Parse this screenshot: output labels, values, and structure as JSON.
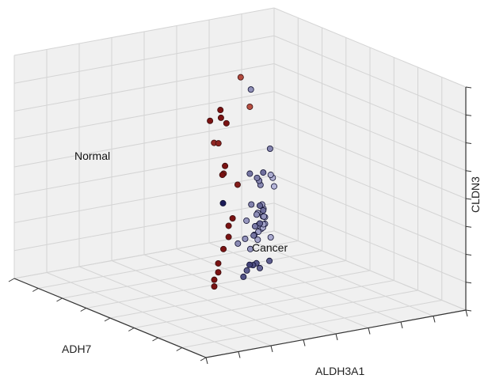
{
  "chart_data": {
    "type": "scatter",
    "projection": "3d",
    "title": "",
    "xlabel": "ADH7",
    "ylabel": "ALDH3A1",
    "zlabel": "CLDN3",
    "grid": true,
    "pane_color": "#f0f0f0",
    "grid_color": "#d4d4d4",
    "annotations": [
      {
        "text": "Normal",
        "class": "normal"
      },
      {
        "text": "Cancer",
        "class": "cancer"
      }
    ],
    "colors": {
      "normal_edge": "#3a0e0e",
      "normal_light": "#e07a64",
      "normal_dark": "#7a1212",
      "cancer_light": "#b6b6d8",
      "cancer_dark": "#1c1c58"
    },
    "series": [
      {
        "class": "normal",
        "points": [
          {
            "x": 0.9,
            "y": 0.05,
            "z": 0.78
          },
          {
            "x": 0.78,
            "y": 0.22,
            "z": 0.95
          },
          {
            "x": 0.8,
            "y": 0.25,
            "z": 0.93
          },
          {
            "x": 0.76,
            "y": 0.25,
            "z": 0.97
          },
          {
            "x": 0.7,
            "y": 0.3,
            "z": 0.88
          },
          {
            "x": 0.72,
            "y": 0.28,
            "z": 0.7
          },
          {
            "x": 0.62,
            "y": 0.45,
            "z": 0.72
          },
          {
            "x": 0.6,
            "y": 0.5,
            "z": 0.7
          },
          {
            "x": 0.62,
            "y": 0.35,
            "z": 0.57
          },
          {
            "x": 0.75,
            "y": 0.2,
            "z": 0.5
          },
          {
            "x": 0.78,
            "y": 0.18,
            "z": 0.48
          },
          {
            "x": 0.78,
            "y": 0.18,
            "z": 0.43
          },
          {
            "x": 0.8,
            "y": 0.18,
            "z": 0.38
          },
          {
            "x": 0.82,
            "y": 0.18,
            "z": 0.32
          },
          {
            "x": 0.82,
            "y": 0.18,
            "z": 0.28
          },
          {
            "x": 0.85,
            "y": 0.16,
            "z": 0.26
          },
          {
            "x": 0.85,
            "y": 0.16,
            "z": 0.23
          },
          {
            "x": 0.35,
            "y": 0.7,
            "z": 0.87
          },
          {
            "x": 0.3,
            "y": 0.72,
            "z": 0.72
          },
          {
            "x": 0.6,
            "y": 0.45,
            "z": 0.58
          }
        ]
      },
      {
        "class": "cancer",
        "points": [
          {
            "x": 0.75,
            "y": 0.25,
            "z": 0.55
          },
          {
            "x": 0.2,
            "y": 0.85,
            "z": 0.73
          },
          {
            "x": 0.2,
            "y": 0.75,
            "z": 0.5
          },
          {
            "x": 0.3,
            "y": 0.65,
            "z": 0.45
          },
          {
            "x": 0.3,
            "y": 0.72,
            "z": 0.42
          },
          {
            "x": 0.25,
            "y": 0.75,
            "z": 0.38
          },
          {
            "x": 0.22,
            "y": 0.78,
            "z": 0.35
          },
          {
            "x": 0.35,
            "y": 0.6,
            "z": 0.33
          },
          {
            "x": 0.35,
            "y": 0.6,
            "z": 0.25
          },
          {
            "x": 0.3,
            "y": 0.65,
            "z": 0.28
          },
          {
            "x": 0.2,
            "y": 0.8,
            "z": 0.32
          },
          {
            "x": 0.25,
            "y": 0.78,
            "z": 0.25
          },
          {
            "x": 0.28,
            "y": 0.72,
            "z": 0.18
          },
          {
            "x": 0.3,
            "y": 0.7,
            "z": 0.15
          },
          {
            "x": 0.2,
            "y": 0.82,
            "z": 0.18
          },
          {
            "x": 0.15,
            "y": 0.85,
            "z": 0.15
          },
          {
            "x": 0.12,
            "y": 0.9,
            "z": 0.18
          },
          {
            "x": 0.1,
            "y": 0.92,
            "z": 0.15
          },
          {
            "x": 0.18,
            "y": 0.9,
            "z": 0.12
          },
          {
            "x": 0.15,
            "y": 0.88,
            "z": 0.1
          },
          {
            "x": 0.1,
            "y": 0.95,
            "z": 0.12
          },
          {
            "x": 0.08,
            "y": 0.95,
            "z": 0.1
          },
          {
            "x": 0.05,
            "y": 0.98,
            "z": 0.08
          },
          {
            "x": 0.05,
            "y": 0.98,
            "z": 0.05
          },
          {
            "x": 0.08,
            "y": 0.95,
            "z": 0.05
          },
          {
            "x": 0.1,
            "y": 0.92,
            "z": 0.08
          },
          {
            "x": 0.12,
            "y": 0.92,
            "z": 0.05
          },
          {
            "x": 0.15,
            "y": 0.9,
            "z": 0.05
          },
          {
            "x": 0.1,
            "y": 0.95,
            "z": 0.0
          },
          {
            "x": 0.05,
            "y": 0.95,
            "z": 0.0
          },
          {
            "x": 0.05,
            "y": 1.0,
            "z": 0.02
          },
          {
            "x": 0.2,
            "y": 0.88,
            "z": 0.05
          },
          {
            "x": 0.25,
            "y": 0.85,
            "z": 0.05
          },
          {
            "x": 0.18,
            "y": 0.88,
            "z": 0.0
          },
          {
            "x": 0.02,
            "y": 0.98,
            "z": 0.25
          },
          {
            "x": 0.0,
            "y": 1.0,
            "z": 0.2
          },
          {
            "x": 0.05,
            "y": 0.95,
            "z": 0.28
          },
          {
            "x": 0.5,
            "y": 0.45,
            "z": 0.15
          },
          {
            "x": 0.45,
            "y": 0.5,
            "z": 0.12
          },
          {
            "x": 0.4,
            "y": 0.55,
            "z": 0.1
          },
          {
            "x": 0.35,
            "y": 0.55,
            "z": 0.1
          },
          {
            "x": 0.4,
            "y": 0.6,
            "z": 0.05
          },
          {
            "x": 0.45,
            "y": 0.55,
            "z": 0.05
          },
          {
            "x": 0.35,
            "y": 0.6,
            "z": 0.05
          }
        ]
      }
    ]
  }
}
